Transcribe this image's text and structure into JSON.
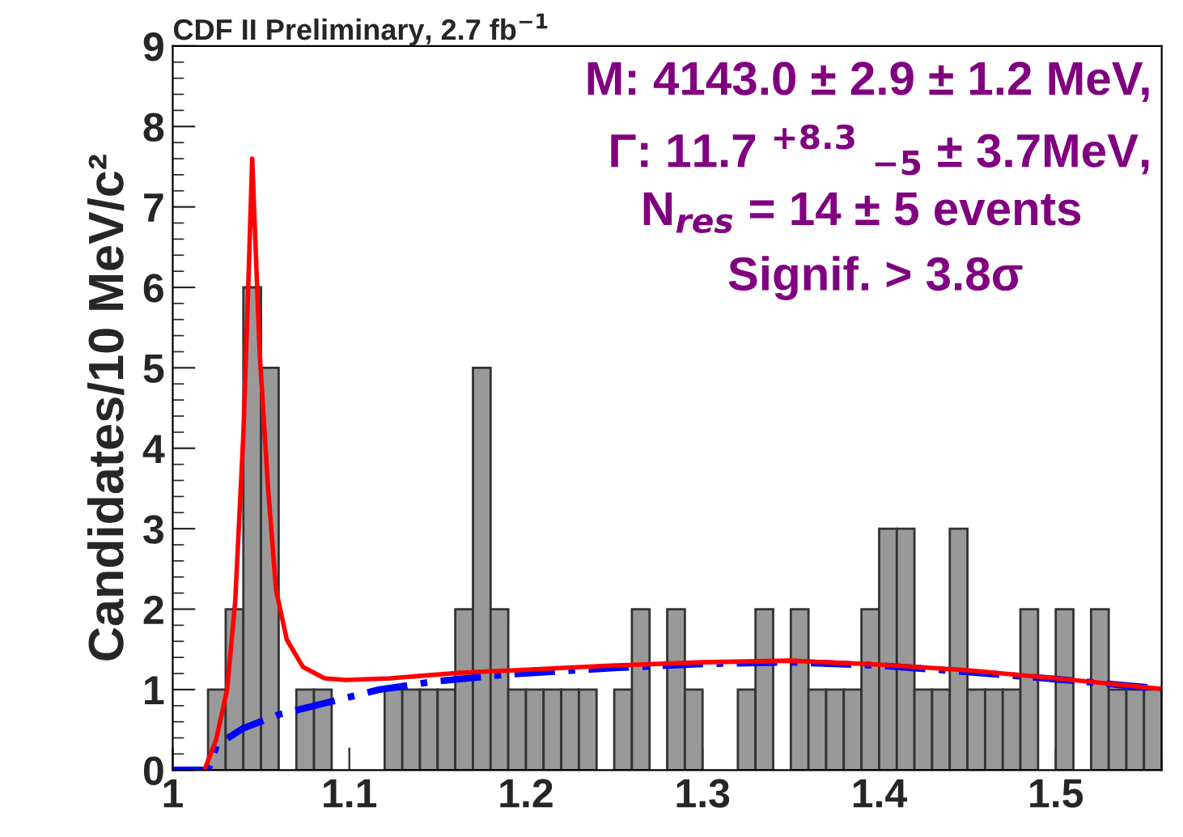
{
  "chart_data": {
    "type": "histogram",
    "title": "CDF II Preliminary, 2.7 fb$^{−1}$",
    "ylabel": "Candidates/10 MeV/c²",
    "bins": [
      1.0,
      1.01,
      1.02,
      1.03,
      1.04,
      1.05,
      1.06,
      1.07,
      1.08,
      1.09,
      1.1,
      1.11,
      1.12,
      1.13,
      1.14,
      1.15,
      1.16,
      1.17,
      1.18,
      1.19,
      1.2,
      1.21,
      1.22,
      1.23,
      1.24,
      1.25,
      1.26,
      1.27,
      1.28,
      1.29,
      1.3,
      1.31,
      1.32,
      1.33,
      1.34,
      1.35,
      1.36,
      1.37,
      1.38,
      1.39,
      1.4,
      1.41,
      1.42,
      1.43,
      1.44,
      1.45,
      1.46,
      1.47,
      1.48,
      1.49,
      1.5,
      1.51,
      1.52,
      1.53,
      1.54,
      1.55,
      1.56
    ],
    "values": [
      0,
      0,
      1,
      2,
      6,
      5,
      0,
      1,
      1,
      0,
      0,
      0,
      1,
      1,
      1,
      1,
      2,
      5,
      2,
      1,
      1,
      1,
      1,
      1,
      0,
      1,
      2,
      0,
      2,
      1,
      0,
      0,
      1,
      2,
      0,
      2,
      1,
      1,
      1,
      2,
      3,
      3,
      1,
      1,
      3,
      1,
      1,
      1,
      2,
      0,
      2,
      0,
      2,
      1,
      1,
      1
    ],
    "color": "#999999",
    "series": [
      {
        "type": "line",
        "color": "#0000ff",
        "line_style": "dashed",
        "x": [
          1.0,
          1.02,
          1.025,
          1.04,
          1.06,
          1.086,
          1.117,
          1.148,
          1.19,
          1.25,
          1.3,
          1.35,
          1.4,
          1.45,
          1.5,
          1.56
        ],
        "values": [
          0,
          0,
          0.31,
          0.52,
          0.69,
          0.83,
          1.0,
          1.1,
          1.19,
          1.27,
          1.32,
          1.34,
          1.3,
          1.22,
          1.13,
          1.01
        ]
      },
      {
        "type": "line",
        "color": "#ff0000",
        "line_style": "solid",
        "x": [
          1.0185,
          1.0246,
          1.0308,
          1.0354,
          1.04,
          1.0431,
          1.045,
          1.0492,
          1.054,
          1.0585,
          1.0646,
          1.0738,
          1.086,
          1.098,
          1.123,
          1.163,
          1.194,
          1.25,
          1.3,
          1.35,
          1.4,
          1.45,
          1.5,
          1.56
        ],
        "values": [
          0.03,
          0.38,
          1.0,
          2.1,
          4.17,
          6.24,
          7.6,
          5.2,
          3.5,
          2.24,
          1.62,
          1.28,
          1.14,
          1.12,
          1.14,
          1.21,
          1.24,
          1.3,
          1.34,
          1.36,
          1.31,
          1.24,
          1.14,
          1.01
        ]
      }
    ],
    "xlim": [
      1.0,
      1.56
    ],
    "xticks": [
      1,
      1.1,
      1.2,
      1.3,
      1.4,
      1.5
    ],
    "ylim": [
      0,
      9
    ],
    "yticks": [
      0,
      1,
      2,
      3,
      4,
      5,
      6,
      7,
      8,
      9
    ],
    "grid": false,
    "legend": false,
    "annotations": [
      "M: 4143.0 ± 2.9 ± 1.2 MeV,",
      "Γ: 11.7 $^{+8.3}$ $_{−5}$ ± 3.7MeV,",
      "N$_{res}$ = 14 ± 5 events",
      "Signif. > 3.8σ"
    ]
  }
}
